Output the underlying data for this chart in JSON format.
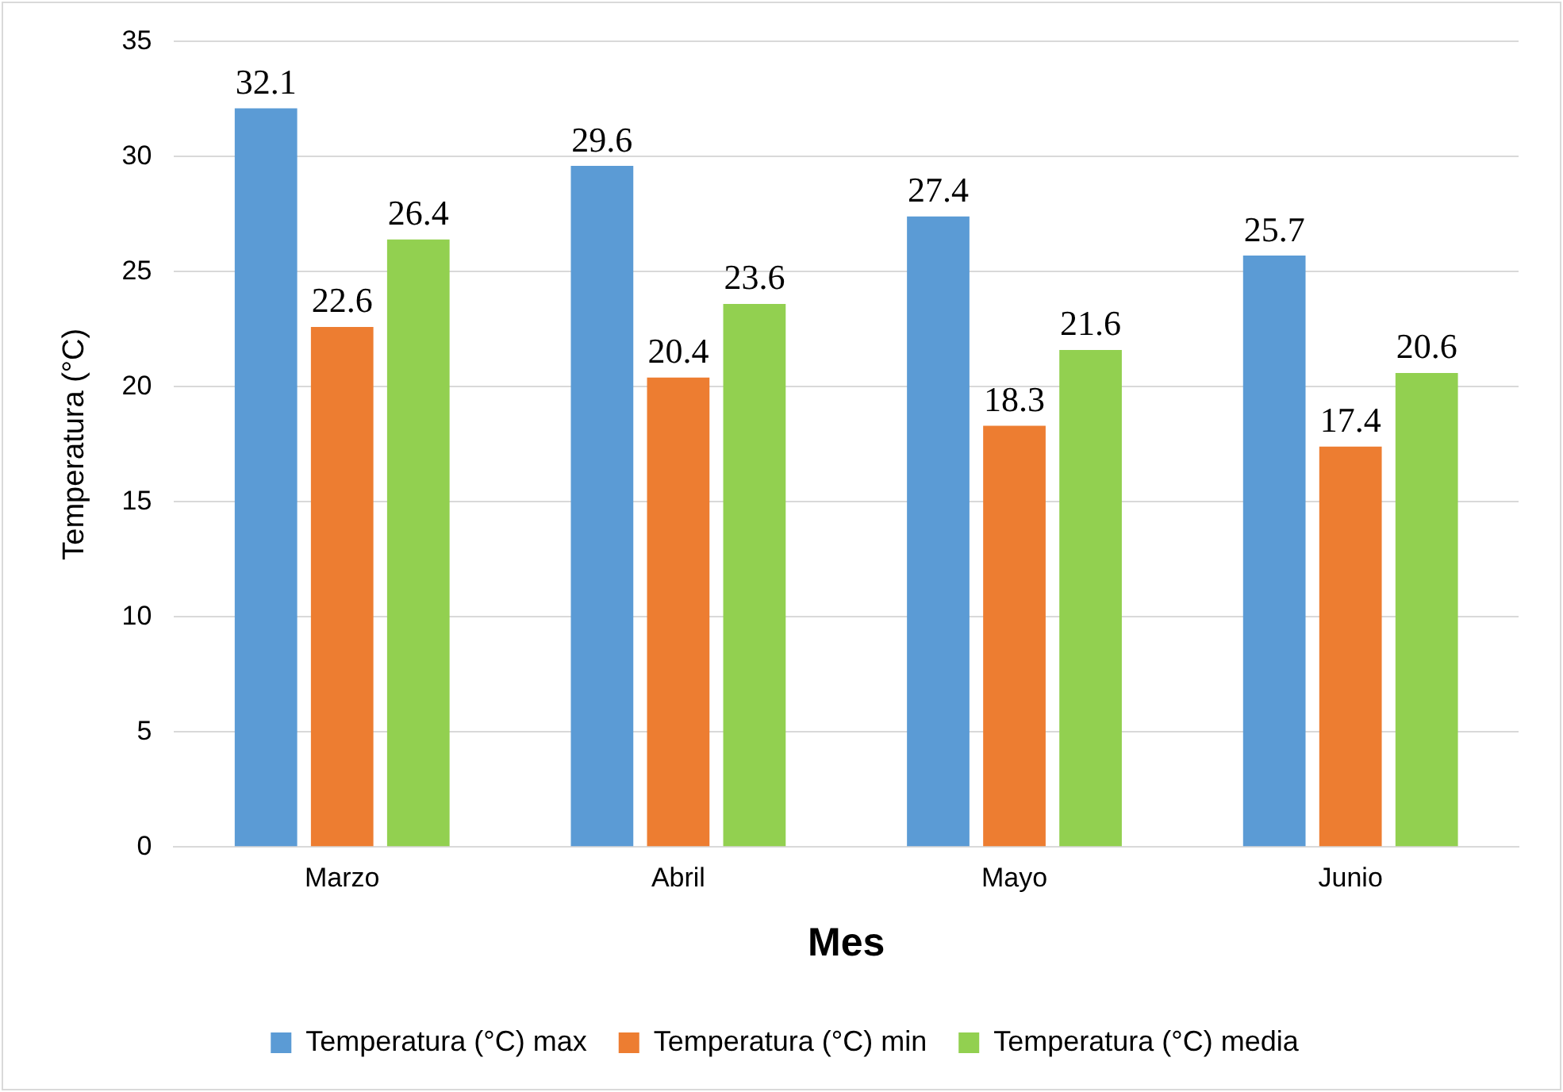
{
  "chart_data": {
    "type": "bar",
    "xlabel": "Mes",
    "ylabel": "Temperatura (°C)",
    "categories": [
      "Marzo",
      "Abril",
      "Mayo",
      "Junio"
    ],
    "series": [
      {
        "name": "Temperatura (°C) max",
        "color": "#5b9bd5",
        "values": [
          32.1,
          29.6,
          27.4,
          25.7
        ]
      },
      {
        "name": "Temperatura (°C) min",
        "color": "#ed7d31",
        "values": [
          22.6,
          20.4,
          18.3,
          17.4
        ]
      },
      {
        "name": "Temperatura (°C) media",
        "color": "#92d050",
        "values": [
          26.4,
          23.6,
          21.6,
          20.6
        ]
      }
    ],
    "ylim": [
      0,
      35
    ],
    "yticks": [
      0,
      5,
      10,
      15,
      20,
      25,
      30,
      35
    ],
    "grid": "y",
    "legend": "bottom",
    "data_labels": true
  }
}
